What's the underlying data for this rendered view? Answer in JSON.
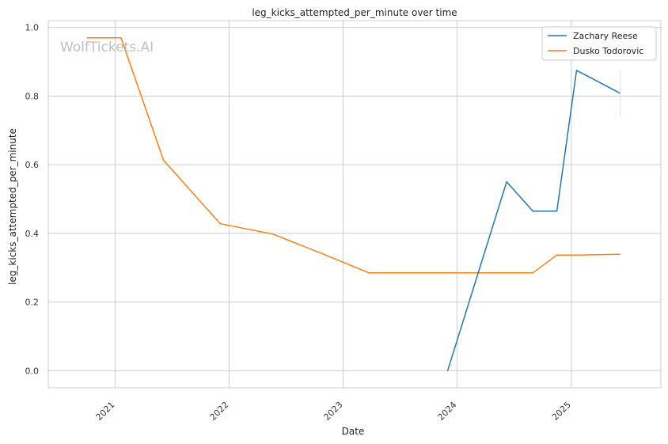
{
  "chart_data": {
    "type": "line",
    "title": "leg_kicks_attempted_per_minute over time",
    "xlabel": "Date",
    "ylabel": "leg_kicks_attempted_per_minute",
    "watermark": "WolfTickets.AI",
    "x_ticks": [
      "2021",
      "2022",
      "2023",
      "2024",
      "2025"
    ],
    "y_ticks": [
      "0.0",
      "0.2",
      "0.4",
      "0.6",
      "0.8",
      "1.0"
    ],
    "xlim": [
      "2020-06-01",
      "2025-10-15"
    ],
    "ylim": [
      -0.05,
      1.02
    ],
    "grid": true,
    "legend_position": "top-right",
    "series": [
      {
        "name": "Zachary Reese",
        "color": "#1f77b4",
        "points": [
          {
            "x": "2023-12-02",
            "y": 0.0
          },
          {
            "x": "2024-06-08",
            "y": 0.55
          },
          {
            "x": "2024-08-31",
            "y": 0.465
          },
          {
            "x": "2024-11-16",
            "y": 0.465
          },
          {
            "x": "2025-01-18",
            "y": 0.875
          },
          {
            "x": "2025-06-07",
            "y": 0.808
          }
        ]
      },
      {
        "name": "Dusko Todorovic",
        "color": "#ff7f0e",
        "points": [
          {
            "x": "2020-10-03",
            "y": 0.97
          },
          {
            "x": "2021-01-20",
            "y": 0.97
          },
          {
            "x": "2021-06-05",
            "y": 0.613
          },
          {
            "x": "2021-12-04",
            "y": 0.428
          },
          {
            "x": "2022-05-21",
            "y": 0.398
          },
          {
            "x": "2022-10-29",
            "y": 0.34
          },
          {
            "x": "2023-03-25",
            "y": 0.285
          },
          {
            "x": "2024-08-31",
            "y": 0.285
          },
          {
            "x": "2024-11-16",
            "y": 0.337
          },
          {
            "x": "2025-01-18",
            "y": 0.337
          },
          {
            "x": "2025-06-07",
            "y": 0.339
          }
        ]
      }
    ]
  }
}
